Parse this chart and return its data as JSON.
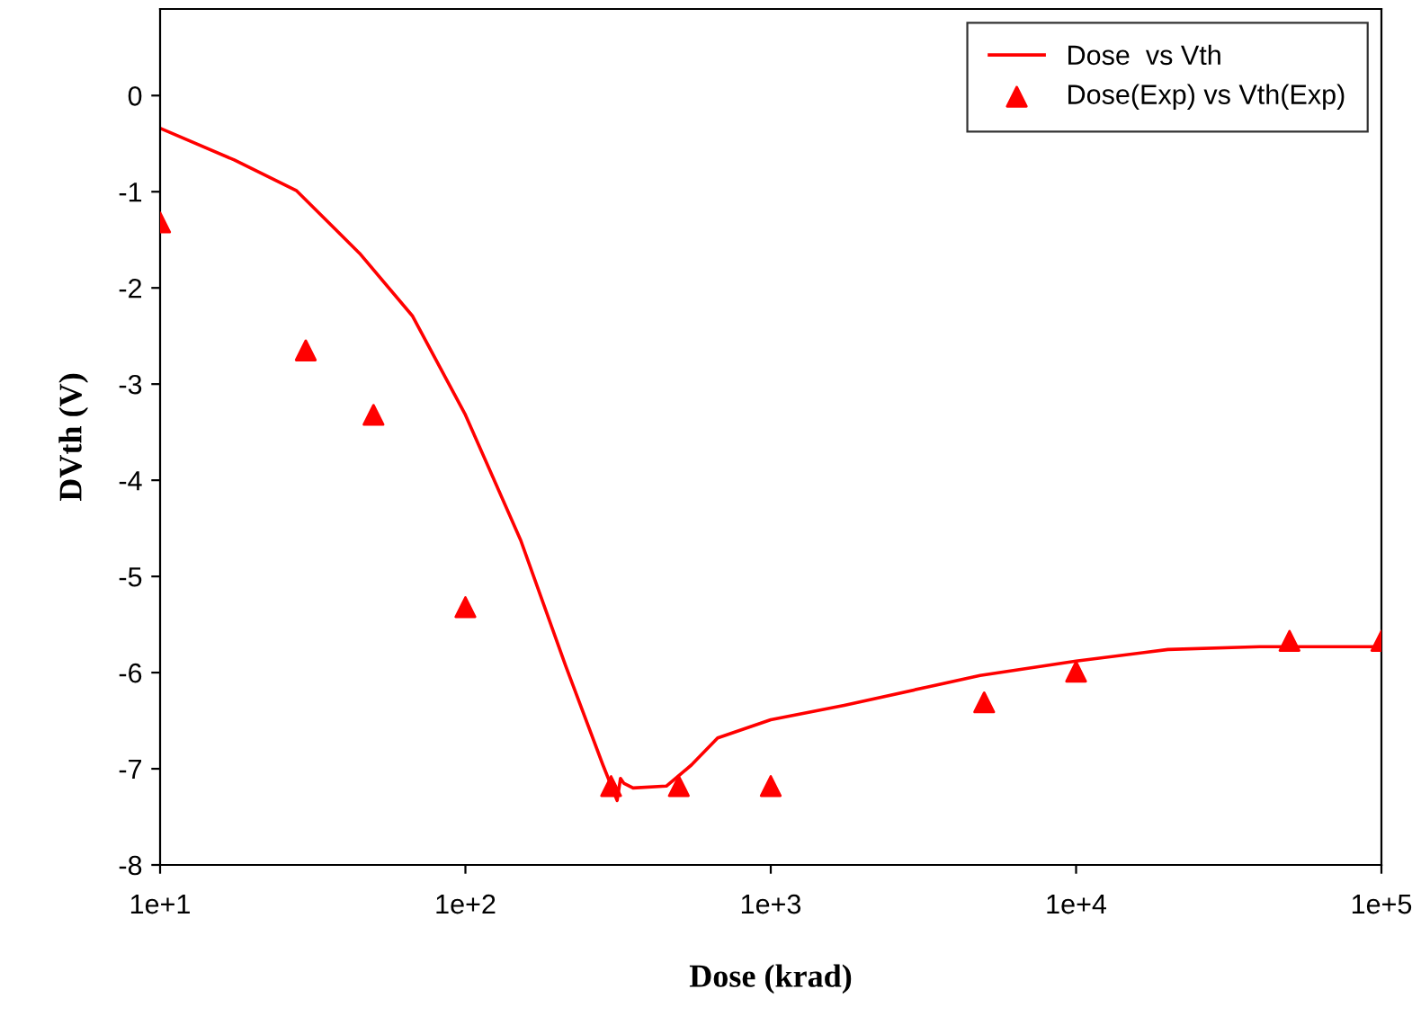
{
  "chart_data": {
    "type": "line",
    "xlabel": "Dose (krad)",
    "ylabel": "DVth (V)",
    "log": "x",
    "xlim": [
      10,
      100000
    ],
    "xticks": [
      {
        "value": 10,
        "label": "1e+1"
      },
      {
        "value": 100,
        "label": "1e+2"
      },
      {
        "value": 1000,
        "label": "1e+3"
      },
      {
        "value": 10000,
        "label": "1e+4"
      },
      {
        "value": 100000,
        "label": "1e+5"
      }
    ],
    "ylim": [
      -8,
      0.9
    ],
    "yticks": [
      -8,
      -7,
      -6,
      -5,
      -4,
      -3,
      -2,
      -1,
      0
    ],
    "grid": false,
    "legend": "top right",
    "series": [
      {
        "name": "Dose  vs Vth",
        "color": "#ff0000",
        "marker": "none",
        "line_style": "solid",
        "x": [
          10,
          17.5,
          28,
          45,
          67,
          100,
          152,
          213,
          282,
          314,
          322,
          330,
          354,
          455,
          550,
          670,
          1000,
          1740,
          4850,
          10000,
          20000,
          40000,
          100000
        ],
        "values": [
          -0.34,
          -0.67,
          -0.99,
          -1.64,
          -2.29,
          -3.32,
          -4.63,
          -5.93,
          -6.96,
          -7.33,
          -7.1,
          -7.15,
          -7.2,
          -7.18,
          -6.96,
          -6.68,
          -6.49,
          -6.34,
          -6.03,
          -5.88,
          -5.76,
          -5.73,
          -5.73
        ]
      },
      {
        "name": "Dose(Exp) vs Vth(Exp)",
        "type": "scatter",
        "color": "#ff0000",
        "marker": "triangle",
        "x": [
          10,
          30,
          50,
          100,
          300,
          500,
          1000,
          5000,
          10000,
          50000,
          100000
        ],
        "values": [
          -1.32,
          -2.65,
          -3.32,
          -5.32,
          -7.18,
          -7.18,
          -7.18,
          -6.31,
          -5.99,
          -5.67,
          -5.67
        ]
      }
    ]
  }
}
